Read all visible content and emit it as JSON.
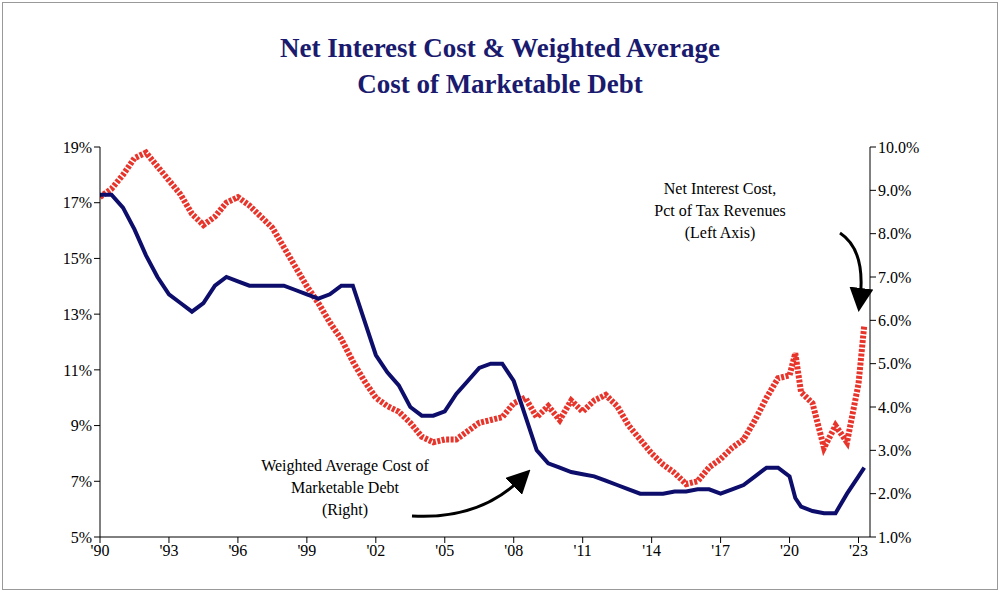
{
  "chart_data": {
    "type": "line",
    "title": "Net Interest Cost & Weighted Average\nCost of Marketable Debt",
    "x": [
      1990,
      1990.5,
      1991,
      1991.5,
      1992,
      1992.5,
      1993,
      1993.5,
      1994,
      1994.5,
      1995,
      1995.5,
      1996,
      1996.5,
      1997,
      1997.5,
      1998,
      1998.5,
      1999,
      1999.5,
      2000,
      2000.5,
      2001,
      2001.5,
      2002,
      2002.5,
      2003,
      2003.5,
      2004,
      2004.5,
      2005,
      2005.5,
      2006,
      2006.5,
      2007,
      2007.5,
      2008,
      2008.5,
      2009,
      2009.5,
      2010,
      2010.5,
      2011,
      2011.5,
      2012,
      2012.5,
      2013,
      2013.5,
      2014,
      2014.5,
      2015,
      2015.5,
      2016,
      2016.5,
      2017,
      2017.5,
      2018,
      2018.5,
      2019,
      2019.5,
      2020,
      2020.25,
      2020.5,
      2021,
      2021.5,
      2022,
      2022.5,
      2023,
      2023.25
    ],
    "series": [
      {
        "name": "Net Interest Cost,\nPct of Tax Revenues\n(Left Axis)",
        "color": "#e8352c",
        "line_style": "dotted",
        "values": [
          17.2,
          17.5,
          18.0,
          18.6,
          18.8,
          18.3,
          17.8,
          17.3,
          16.6,
          16.2,
          16.5,
          17.0,
          17.2,
          16.9,
          16.5,
          16.1,
          15.4,
          14.7,
          14.0,
          13.4,
          12.7,
          12.1,
          11.3,
          10.6,
          10.0,
          9.7,
          9.5,
          9.1,
          8.6,
          8.4,
          8.5,
          8.5,
          8.8,
          9.1,
          9.2,
          9.3,
          9.8,
          10.0,
          9.3,
          9.7,
          9.2,
          9.9,
          9.5,
          9.9,
          10.1,
          9.7,
          9.0,
          8.5,
          8.0,
          7.6,
          7.3,
          6.9,
          7.0,
          7.5,
          7.8,
          8.2,
          8.5,
          9.2,
          10.0,
          10.7,
          10.8,
          11.6,
          10.2,
          9.8,
          8.2,
          9.0,
          8.4,
          10.5,
          12.6
        ]
      },
      {
        "name": "Weighted Average Cost of\nMarketable Debt\n(Right)",
        "color": "#0d0d6b",
        "line_style": "solid",
        "axis": "y2",
        "values": [
          8.9,
          8.9,
          8.6,
          8.1,
          7.5,
          7.0,
          6.6,
          6.4,
          6.2,
          6.4,
          6.8,
          7.0,
          6.9,
          6.8,
          6.8,
          6.8,
          6.8,
          6.7,
          6.6,
          6.5,
          6.6,
          6.8,
          6.8,
          6.0,
          5.2,
          4.8,
          4.5,
          4.0,
          3.8,
          3.8,
          3.9,
          4.3,
          4.6,
          4.9,
          5.0,
          5.0,
          4.6,
          3.8,
          3.0,
          2.7,
          2.6,
          2.5,
          2.45,
          2.4,
          2.3,
          2.2,
          2.1,
          2.0,
          2.0,
          2.0,
          2.05,
          2.05,
          2.1,
          2.1,
          2.0,
          2.1,
          2.2,
          2.4,
          2.6,
          2.6,
          2.4,
          1.9,
          1.7,
          1.6,
          1.55,
          1.55,
          2.0,
          2.4,
          2.6
        ]
      }
    ],
    "xlim": [
      1990,
      2023.5
    ],
    "xticks": [
      {
        "value": 1990,
        "label": "'90"
      },
      {
        "value": 1993,
        "label": "'93"
      },
      {
        "value": 1996,
        "label": "'96"
      },
      {
        "value": 1999,
        "label": "'99"
      },
      {
        "value": 2002,
        "label": "'02"
      },
      {
        "value": 2005,
        "label": "'05"
      },
      {
        "value": 2008,
        "label": "'08"
      },
      {
        "value": 2011,
        "label": "'11"
      },
      {
        "value": 2014,
        "label": "'14"
      },
      {
        "value": 2017,
        "label": "'17"
      },
      {
        "value": 2020,
        "label": "'20"
      },
      {
        "value": 2023,
        "label": "'23"
      }
    ],
    "ylim": [
      5,
      19
    ],
    "yticks": [
      {
        "value": 5,
        "label": "5%"
      },
      {
        "value": 7,
        "label": "7%"
      },
      {
        "value": 9,
        "label": "9%"
      },
      {
        "value": 11,
        "label": "11%"
      },
      {
        "value": 13,
        "label": "13%"
      },
      {
        "value": 15,
        "label": "15%"
      },
      {
        "value": 17,
        "label": "17%"
      },
      {
        "value": 19,
        "label": "19%"
      }
    ],
    "y2lim": [
      1,
      10
    ],
    "y2ticks": [
      {
        "value": 1,
        "label": "1.0%"
      },
      {
        "value": 2,
        "label": "2.0%"
      },
      {
        "value": 3,
        "label": "3.0%"
      },
      {
        "value": 4,
        "label": "4.0%"
      },
      {
        "value": 5,
        "label": "5.0%"
      },
      {
        "value": 6,
        "label": "6.0%"
      },
      {
        "value": 7,
        "label": "7.0%"
      },
      {
        "value": 8,
        "label": "8.0%"
      },
      {
        "value": 9,
        "label": "9.0%"
      },
      {
        "value": 10,
        "label": "10.0%"
      }
    ],
    "grid": false
  }
}
